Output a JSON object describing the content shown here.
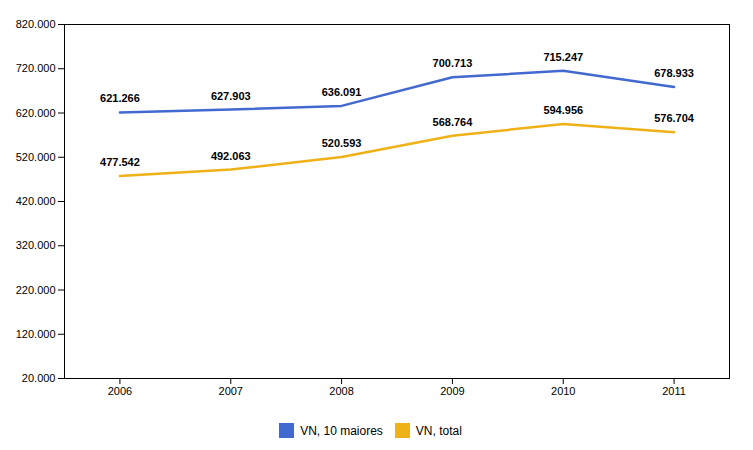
{
  "chart_data": {
    "type": "line",
    "x": [
      2006,
      2007,
      2008,
      2009,
      2010,
      2011
    ],
    "xlim": [
      2005.5,
      2011.5
    ],
    "xticks": [
      2006,
      2007,
      2008,
      2009,
      2010,
      2011
    ],
    "ylim": [
      20000,
      820000
    ],
    "yticks": [
      {
        "value": 20000,
        "label": "20.000"
      },
      {
        "value": 120000,
        "label": "120.000"
      },
      {
        "value": 220000,
        "label": "220.000"
      },
      {
        "value": 320000,
        "label": "320.000"
      },
      {
        "value": 420000,
        "label": "420.000"
      },
      {
        "value": 520000,
        "label": "520.000"
      },
      {
        "value": 620000,
        "label": "620.000"
      },
      {
        "value": 720000,
        "label": "720.000"
      },
      {
        "value": 820000,
        "label": "820.000"
      }
    ],
    "series": [
      {
        "name": "VN, 10 maiores",
        "values": [
          621266,
          627903,
          636091,
          700713,
          715247,
          678933
        ],
        "value_labels": [
          "621.266",
          "627.903",
          "636.091",
          "700.713",
          "715.247",
          "678.933"
        ]
      },
      {
        "name": "VN, total",
        "values": [
          477542,
          492063,
          520593,
          568764,
          594956,
          576704
        ],
        "value_labels": [
          "477.542",
          "492.063",
          "520.593",
          "568.764",
          "594.956",
          "576.704"
        ]
      }
    ],
    "data_labels": true,
    "grid": false,
    "legend": "bottom"
  }
}
